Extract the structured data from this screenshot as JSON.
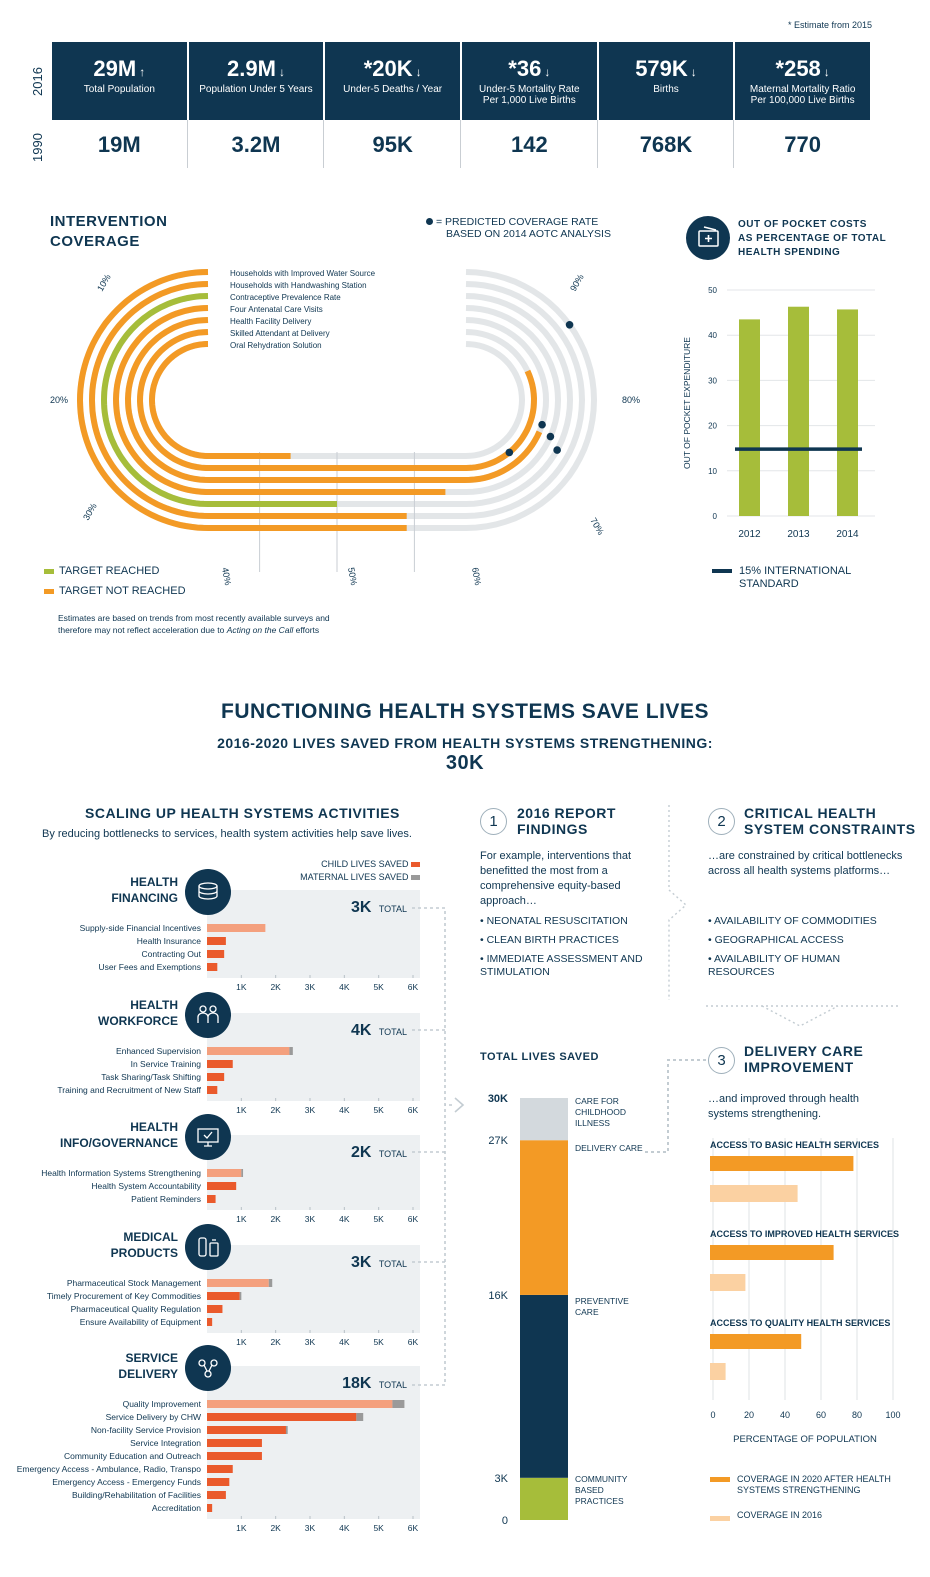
{
  "estimate_note": "* Estimate from 2015",
  "years": {
    "current": "2016",
    "past": "1990"
  },
  "stats": [
    {
      "value": "29M",
      "arrow": "↑",
      "label": "Total Population",
      "past": "19M"
    },
    {
      "value": "2.9M",
      "arrow": "↓",
      "label": "Population Under 5 Years",
      "past": "3.2M"
    },
    {
      "value": "*20K",
      "arrow": "↓",
      "label": "Under-5 Deaths / Year",
      "past": "95K"
    },
    {
      "value": "*36",
      "arrow": "↓",
      "label": "Under-5 Mortality Rate Per 1,000 Live Births",
      "past": "142"
    },
    {
      "value": "579K",
      "arrow": "↓",
      "label": "Births",
      "past": "768K"
    },
    {
      "value": "*258",
      "arrow": "↓",
      "label": "Maternal Mortality Ratio Per 100,000 Live Births",
      "past": "770"
    }
  ],
  "intervention": {
    "title_line1": "INTERVENTION",
    "title_line2": "COVERAGE",
    "predicted_line1": "= PREDICTED COVERAGE RATE",
    "predicted_line2": "BASED ON 2014 AOTC ANALYSIS",
    "legend_reached": "TARGET REACHED",
    "legend_not_reached": "TARGET NOT REACHED",
    "footnote_line1": "Estimates are based on trends from most recently available surveys and",
    "footnote_line2_a": "therefore may not reflect acceleration due to ",
    "footnote_line2_b": "Acting on the Call",
    "footnote_line2_c": " efforts",
    "colors": {
      "reached": "#a6bd3a",
      "not_reached": "#f39a25",
      "track": "#e3e6e8",
      "dot": "#0f3651"
    }
  },
  "oop": {
    "title_line1": "OUT OF POCKET COSTS",
    "title_line2": "AS PERCENTAGE OF TOTAL",
    "title_line3": "HEALTH SPENDING",
    "legend_line1": "15% INTERNATIONAL",
    "legend_line2": "STANDARD"
  },
  "section": {
    "title": "FUNCTIONING HEALTH SYSTEMS SAVE LIVES",
    "subtitle": "2016-2020 LIVES SAVED FROM HEALTH SYSTEMS STRENGTHENING:",
    "total": "30K"
  },
  "scaling": {
    "title": "SCALING UP HEALTH SYSTEMS ACTIVITIES",
    "subtitle": "By reducing bottlenecks to services, health system activities help save lives.",
    "legend_child": "CHILD LIVES SAVED",
    "legend_maternal": "MATERNAL LIVES SAVED",
    "total_word": "TOTAL"
  },
  "findings": {
    "num": "1",
    "title_line1": "2016 REPORT",
    "title_line2": "FINDINGS",
    "text": "For example, interventions that benefitted the most from a comprehensive equity-based approach…",
    "bullets": [
      "• NEONATAL RESUSCITATION",
      "• CLEAN BIRTH PRACTICES",
      "• IMMEDIATE ASSESSMENT AND STIMULATION"
    ]
  },
  "constraints": {
    "num": "2",
    "title_line1": "CRITICAL HEALTH",
    "title_line2": "SYSTEM CONSTRAINTS",
    "text": "…are constrained by critical bottlenecks across all health systems platforms…",
    "bullets": [
      "• AVAILABILITY OF COMMODITIES",
      "• GEOGRAPHICAL ACCESS",
      "• AVAILABILITY OF HUMAN RESOURCES"
    ]
  },
  "delivery": {
    "num": "3",
    "title_line1": "DELIVERY CARE",
    "title_line2": "IMPROVEMENT",
    "text": "…and improved through health systems strengthening.",
    "legend_2020": "COVERAGE IN 2020 AFTER HEALTH SYSTEMS STRENGTHENING",
    "legend_2016": "COVERAGE IN 2016"
  },
  "total_lives": {
    "title": "TOTAL LIVES SAVED"
  },
  "chart_data": [
    {
      "type": "pie",
      "title": "INTERVENTION COVERAGE",
      "description_type": "radial track (race-track) coverage chart",
      "scale_ticks": [
        "10%",
        "20%",
        "30%",
        "40%",
        "50%",
        "60%",
        "70%",
        "80%",
        "90%"
      ],
      "series": [
        {
          "name": "Households with Improved Water Source",
          "coverage": 59,
          "target_reached": false,
          "predicted": 90
        },
        {
          "name": "Households with Handwashing Station",
          "coverage": 59,
          "target_reached": false,
          "predicted": null
        },
        {
          "name": "Contraceptive Prevalence Rate",
          "coverage": 50,
          "target_reached": true,
          "predicted": 78
        },
        {
          "name": "Four Antenatal Care Visits",
          "coverage": 64,
          "target_reached": false,
          "predicted": 79
        },
        {
          "name": "Health Facility Delivery",
          "coverage": 79,
          "target_reached": false,
          "predicted": 80
        },
        {
          "name": "Skilled Attendant at Delivery",
          "coverage": 88,
          "target_reached": false,
          "predicted": 74
        },
        {
          "name": "Oral Rehydration Solution",
          "coverage": 44,
          "target_reached": false,
          "predicted": null
        }
      ]
    },
    {
      "type": "bar",
      "title": "OUT OF POCKET COSTS AS PERCENTAGE OF TOTAL HEALTH SPENDING",
      "ylabel": "OUT OF POCKET EXPENDITURE",
      "categories": [
        "2012",
        "2013",
        "2014"
      ],
      "values": [
        43.5,
        46.3,
        45.7
      ],
      "ylim": [
        0,
        50
      ],
      "yticks": [
        0,
        10,
        20,
        30,
        40,
        50
      ],
      "reference_line": {
        "value": 14.8,
        "label": "15% INTERNATIONAL STANDARD"
      },
      "color": "#a6bd3a"
    },
    {
      "type": "bar",
      "title": "SCALING UP HEALTH SYSTEMS ACTIVITIES",
      "xticks": [
        "1K",
        "2K",
        "3K",
        "4K",
        "5K",
        "6K"
      ],
      "xlim": [
        0,
        6000
      ],
      "groups": [
        {
          "name_line1": "HEALTH",
          "name_line2": "FINANCING",
          "total": "3K",
          "icon": "coins-icon",
          "items": [
            {
              "label": "Supply-side Financial Incentives",
              "child": 1700,
              "maternal": 0
            },
            {
              "label": "Health Insurance",
              "child": 550,
              "maternal": 0
            },
            {
              "label": "Contracting Out",
              "child": 500,
              "maternal": 0
            },
            {
              "label": "User Fees and Exemptions",
              "child": 300,
              "maternal": 0
            }
          ]
        },
        {
          "name_line1": "HEALTH",
          "name_line2": "WORKFORCE",
          "total": "4K",
          "icon": "people-icon",
          "items": [
            {
              "label": "Enhanced Supervision",
              "child": 2400,
              "maternal": 100
            },
            {
              "label": "In Service Training",
              "child": 750,
              "maternal": 0
            },
            {
              "label": "Task Sharing/Task Shifting",
              "child": 500,
              "maternal": 0
            },
            {
              "label": "Training and Recruitment of New Staff",
              "child": 300,
              "maternal": 0
            }
          ]
        },
        {
          "name_line1": "HEALTH",
          "name_line2": "INFO/GOVERNANCE",
          "total": "2K",
          "icon": "monitor-icon",
          "items": [
            {
              "label": "Health Information Systems Strengthening",
              "child": 1000,
              "maternal": 50
            },
            {
              "label": "Health System Accountability",
              "child": 850,
              "maternal": 0
            },
            {
              "label": "Patient Reminders",
              "child": 250,
              "maternal": 0
            }
          ]
        },
        {
          "name_line1": "MEDICAL",
          "name_line2": "PRODUCTS",
          "total": "3K",
          "icon": "medicine-icon",
          "items": [
            {
              "label": "Pharmaceutical Stock Management",
              "child": 1800,
              "maternal": 100
            },
            {
              "label": "Timely Procurement of Key Commodities",
              "child": 950,
              "maternal": 50
            },
            {
              "label": "Pharmaceutical Quality Regulation",
              "child": 450,
              "maternal": 0
            },
            {
              "label": "Ensure Availability of Equipment",
              "child": 150,
              "maternal": 0
            }
          ]
        },
        {
          "name_line1": "SERVICE",
          "name_line2": "DELIVERY",
          "total": "18K",
          "icon": "network-icon",
          "items": [
            {
              "label": "Quality Improvement",
              "child": 5400,
              "maternal": 350
            },
            {
              "label": "Service Delivery by CHW",
              "child": 4350,
              "maternal": 200
            },
            {
              "label": "Non-facility Service Provision",
              "child": 2300,
              "maternal": 50
            },
            {
              "label": "Service Integration",
              "child": 1600,
              "maternal": 0
            },
            {
              "label": "Community Education and Outreach",
              "child": 1600,
              "maternal": 0
            },
            {
              "label": "Emergency Access - Ambulance, Radio, Transpo",
              "child": 750,
              "maternal": 0
            },
            {
              "label": "Emergency Access - Emergency Funds",
              "child": 650,
              "maternal": 0
            },
            {
              "label": "Building/Rehabilitation of Facilities",
              "child": 550,
              "maternal": 0
            },
            {
              "label": "Accreditation",
              "child": 150,
              "maternal": 0
            }
          ]
        }
      ]
    },
    {
      "type": "bar",
      "title": "TOTAL LIVES SAVED",
      "stacked": true,
      "yticks": [
        "0",
        "3K",
        "16K",
        "27K",
        "30K"
      ],
      "segments": [
        {
          "name": "COMMUNITY BASED PRACTICES",
          "from": 0,
          "to": 3000,
          "color": "#a6bd3a"
        },
        {
          "name": "PREVENTIVE CARE",
          "from": 3000,
          "to": 16000,
          "color": "#0f3651"
        },
        {
          "name": "DELIVERY CARE",
          "from": 16000,
          "to": 27000,
          "color": "#f39a25"
        },
        {
          "name": "CARE FOR CHILDHOOD ILLNESS",
          "from": 27000,
          "to": 30000,
          "color": "#d3d9dd"
        }
      ]
    },
    {
      "type": "bar",
      "title": "DELIVERY CARE IMPROVEMENT",
      "xlabel": "PERCENTAGE OF POPULATION",
      "xticks": [
        "0",
        "20",
        "40",
        "60",
        "80",
        "100"
      ],
      "xlim": [
        0,
        100
      ],
      "series": [
        {
          "name": "COVERAGE IN 2020 AFTER HEALTH SYSTEMS STRENGTHENING",
          "values": [
            78,
            67,
            49
          ],
          "color": "#f39a25"
        },
        {
          "name": "COVERAGE IN 2016",
          "values": [
            47,
            18,
            7
          ],
          "color": "#fbd1a2"
        }
      ],
      "categories": [
        "ACCESS TO BASIC HEALTH SERVICES",
        "ACCESS TO IMPROVED HEALTH SERVICES",
        "ACCESS TO QUALITY HEALTH SERVICES"
      ]
    }
  ]
}
